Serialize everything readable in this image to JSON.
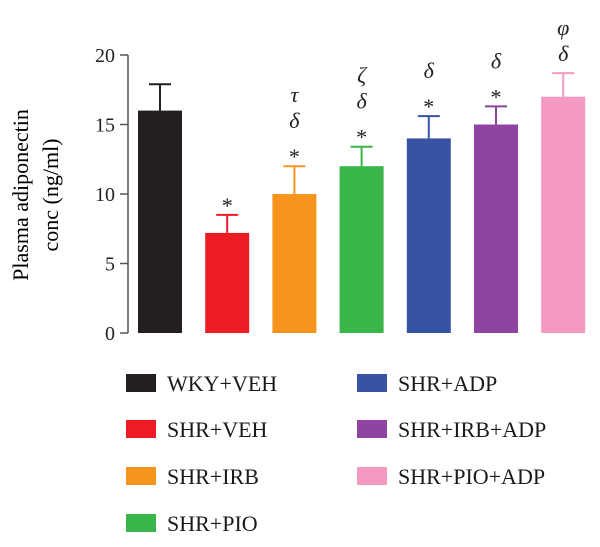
{
  "chart_data": {
    "type": "bar",
    "title": "",
    "xlabel": "",
    "ylabel_lines": [
      "Plasma adiponectin",
      "conc (ng/ml)"
    ],
    "ylim": [
      0,
      20
    ],
    "yticks": [
      0,
      5,
      10,
      15,
      20
    ],
    "grid": false,
    "legend_position": "bottom",
    "categories": [
      "WKY+VEH",
      "SHR+VEH",
      "SHR+IRB",
      "SHR+PIO",
      "SHR+ADP",
      "SHR+IRB+ADP",
      "SHR+PIO+ADP"
    ],
    "values": [
      16.0,
      7.2,
      10.0,
      12.0,
      14.0,
      15.0,
      17.0
    ],
    "errors": [
      1.9,
      1.3,
      2.0,
      1.4,
      1.6,
      1.3,
      1.7
    ],
    "colors": [
      "#231f20",
      "#ed1c24",
      "#f7941d",
      "#39b54a",
      "#3953a4",
      "#8e44a0",
      "#f49ac1"
    ],
    "annotations": [
      [],
      [
        "*"
      ],
      [
        "*",
        "δ",
        "τ"
      ],
      [
        "*",
        "δ",
        "ζ"
      ],
      [
        "*",
        "δ"
      ],
      [
        "*",
        "δ"
      ],
      [
        "δ",
        "φ"
      ]
    ],
    "legend": [
      {
        "label": "WKY+VEH",
        "color": "#231f20"
      },
      {
        "label": "SHR+VEH",
        "color": "#ed1c24"
      },
      {
        "label": "SHR+IRB",
        "color": "#f7941d"
      },
      {
        "label": "SHR+PIO",
        "color": "#39b54a"
      },
      {
        "label": "SHR+ADP",
        "color": "#3953a4"
      },
      {
        "label": "SHR+IRB+ADP",
        "color": "#8e44a0"
      },
      {
        "label": "SHR+PIO+ADP",
        "color": "#f49ac1"
      }
    ]
  }
}
